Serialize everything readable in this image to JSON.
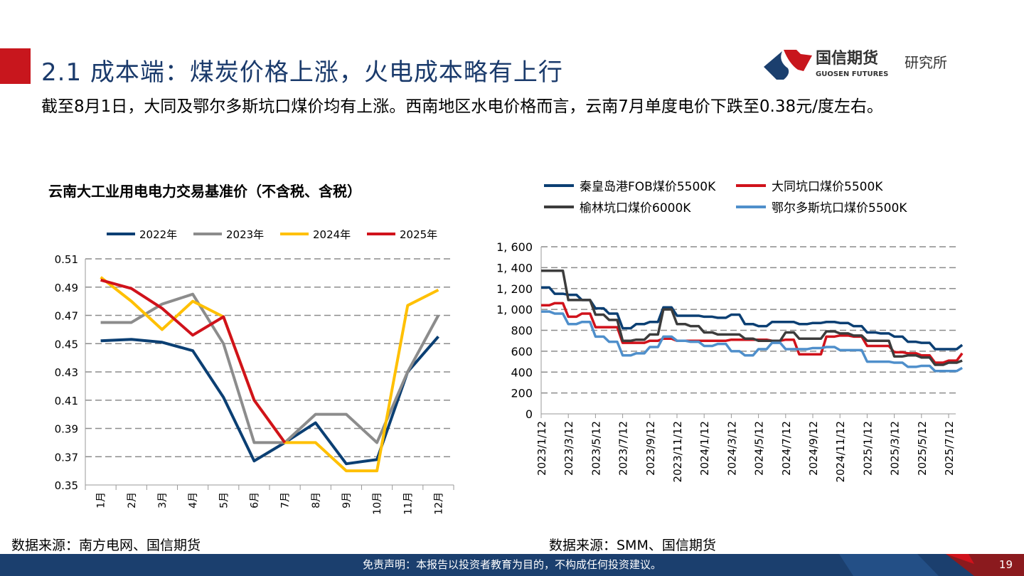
{
  "header": {
    "title": "2.1 成本端：煤炭价格上涨，火电成本略有上行",
    "subtitle": "截至8月1日，大同及鄂尔多斯坑口煤价均有上涨。西南地区水电价格而言，云南7月单度电价下跌至0.38元/度左右。",
    "logo_cn": "国信期货",
    "logo_en": "GUOSEN FUTURES",
    "logo_dept": "研究所"
  },
  "chart_data": [
    {
      "type": "line",
      "title": "云南大工业用电电力交易基准价（不含税、含税）",
      "categories": [
        "1月",
        "2月",
        "3月",
        "4月",
        "5月",
        "6月",
        "7月",
        "8月",
        "9月",
        "10月",
        "11月",
        "12月"
      ],
      "ylim": [
        0.35,
        0.51
      ],
      "yticks": [
        "0.35",
        "0.37",
        "0.39",
        "0.41",
        "0.43",
        "0.45",
        "0.47",
        "0.49",
        "0.51"
      ],
      "legend": "top",
      "series": [
        {
          "name": "2022年",
          "color": "#0b3f73",
          "values": [
            0.452,
            0.453,
            0.451,
            0.445,
            0.412,
            0.367,
            0.38,
            0.394,
            0.365,
            0.368,
            0.43,
            0.455
          ]
        },
        {
          "name": "2023年",
          "color": "#8c8c8c",
          "values": [
            0.465,
            0.465,
            0.478,
            0.485,
            0.45,
            0.38,
            0.38,
            0.4,
            0.4,
            0.38,
            0.43,
            0.47
          ]
        },
        {
          "name": "2024年",
          "color": "#ffc000",
          "values": [
            0.497,
            0.48,
            0.46,
            0.48,
            0.469,
            0.41,
            0.38,
            0.38,
            0.36,
            0.36,
            0.477,
            0.488
          ]
        },
        {
          "name": "2025年",
          "color": "#d0121b",
          "values": [
            0.495,
            0.489,
            0.475,
            0.456,
            0.469,
            0.41,
            0.38,
            null,
            null,
            null,
            null,
            null
          ]
        }
      ]
    },
    {
      "type": "line",
      "title": "",
      "ylim": [
        0,
        1600
      ],
      "yticks": [
        "0",
        "200",
        "400",
        "600",
        "800",
        "1, 000",
        "1, 200",
        "1, 400",
        "1, 600"
      ],
      "xticks": [
        "2023/1/12",
        "2023/3/12",
        "2023/5/12",
        "2023/7/12",
        "2023/9/12",
        "2023/11/12",
        "2024/1/12",
        "2024/3/12",
        "2024/5/12",
        "2024/7/12",
        "2024/9/12",
        "2024/11/12",
        "2025/1/12",
        "2025/3/12",
        "2025/5/12",
        "2025/7/12"
      ],
      "x_unit": "month index from 2023/1",
      "legend": "top",
      "series": [
        {
          "name": "秦皇岛港FOB煤价5500K",
          "color": "#0b3f73",
          "values": [
            1210,
            1150,
            1140,
            1090,
            1010,
            960,
            820,
            860,
            880,
            1020,
            940,
            940,
            930,
            920,
            950,
            860,
            840,
            880,
            880,
            860,
            870,
            880,
            870,
            840,
            780,
            770,
            740,
            690,
            680,
            620,
            620,
            660
          ]
        },
        {
          "name": "大同坑口煤价5500K",
          "color": "#d0121b",
          "values": [
            1040,
            1060,
            930,
            960,
            830,
            830,
            680,
            680,
            700,
            720,
            700,
            700,
            700,
            700,
            710,
            710,
            710,
            700,
            710,
            570,
            570,
            740,
            750,
            740,
            650,
            650,
            590,
            580,
            560,
            490,
            510,
            580
          ]
        },
        {
          "name": "榆林坑口煤价6000K",
          "color": "#3c3c3c",
          "values": [
            1370,
            1370,
            1090,
            1090,
            950,
            900,
            700,
            710,
            760,
            1000,
            860,
            840,
            780,
            760,
            760,
            720,
            700,
            700,
            780,
            720,
            720,
            790,
            770,
            750,
            700,
            700,
            550,
            560,
            540,
            470,
            490,
            510
          ]
        },
        {
          "name": "鄂尔多斯坑口煤价5500K",
          "color": "#4f8fcb",
          "values": [
            980,
            960,
            860,
            880,
            740,
            690,
            560,
            580,
            640,
            740,
            700,
            690,
            650,
            670,
            600,
            560,
            620,
            680,
            620,
            620,
            630,
            640,
            610,
            610,
            500,
            500,
            490,
            450,
            460,
            410,
            410,
            440
          ]
        }
      ]
    }
  ],
  "sources": {
    "left": "数据来源：南方电网、国信期货",
    "right": "数据来源：SMM、国信期货"
  },
  "footer": {
    "disclaimer": "免责声明：本报告以投资者教育为目的，不构成任何投资建议。",
    "page": "19"
  },
  "colors": {
    "brand_red": "#c8161d",
    "brand_blue": "#1b3f6e",
    "title_blue": "#1a3a6b"
  }
}
